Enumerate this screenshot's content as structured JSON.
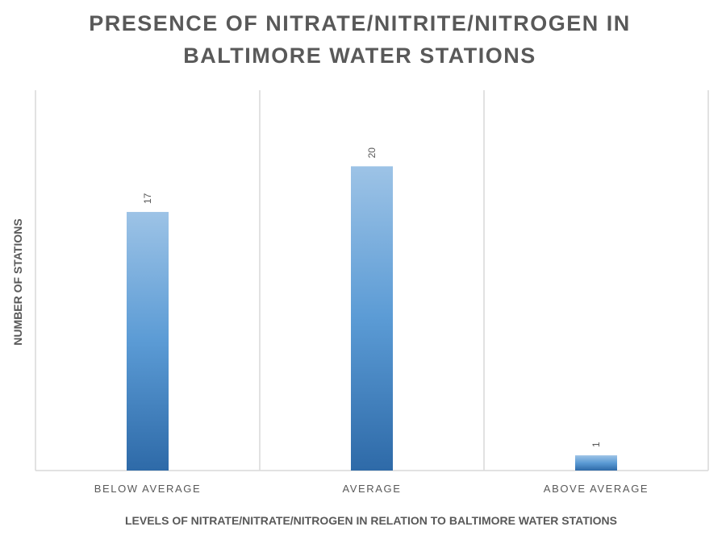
{
  "chart_data": {
    "type": "bar",
    "title": [
      "PRESENCE OF NITRATE/NITRITE/NITROGEN IN",
      "BALTIMORE WATER STATIONS"
    ],
    "xlabel": "LEVELS OF NITRATE/NITRATE/NITROGEN IN RELATION TO BALTIMORE WATER STATIONS",
    "ylabel": "NUMBER OF STATIONS",
    "categories": [
      "BELOW AVERAGE",
      "AVERAGE",
      "ABOVE AVERAGE"
    ],
    "values": [
      17,
      20,
      1
    ],
    "data_labels": [
      "17",
      "20",
      "1"
    ],
    "ylim": [
      0,
      25
    ],
    "grid": "vertical category separators",
    "legend": "none",
    "bar_color_top": "#9dc3e6",
    "bar_color_mid": "#5b9bd5",
    "bar_color_bottom": "#2e6aa8",
    "grid_color": "#d9d9d9",
    "text_color": "#595959"
  }
}
